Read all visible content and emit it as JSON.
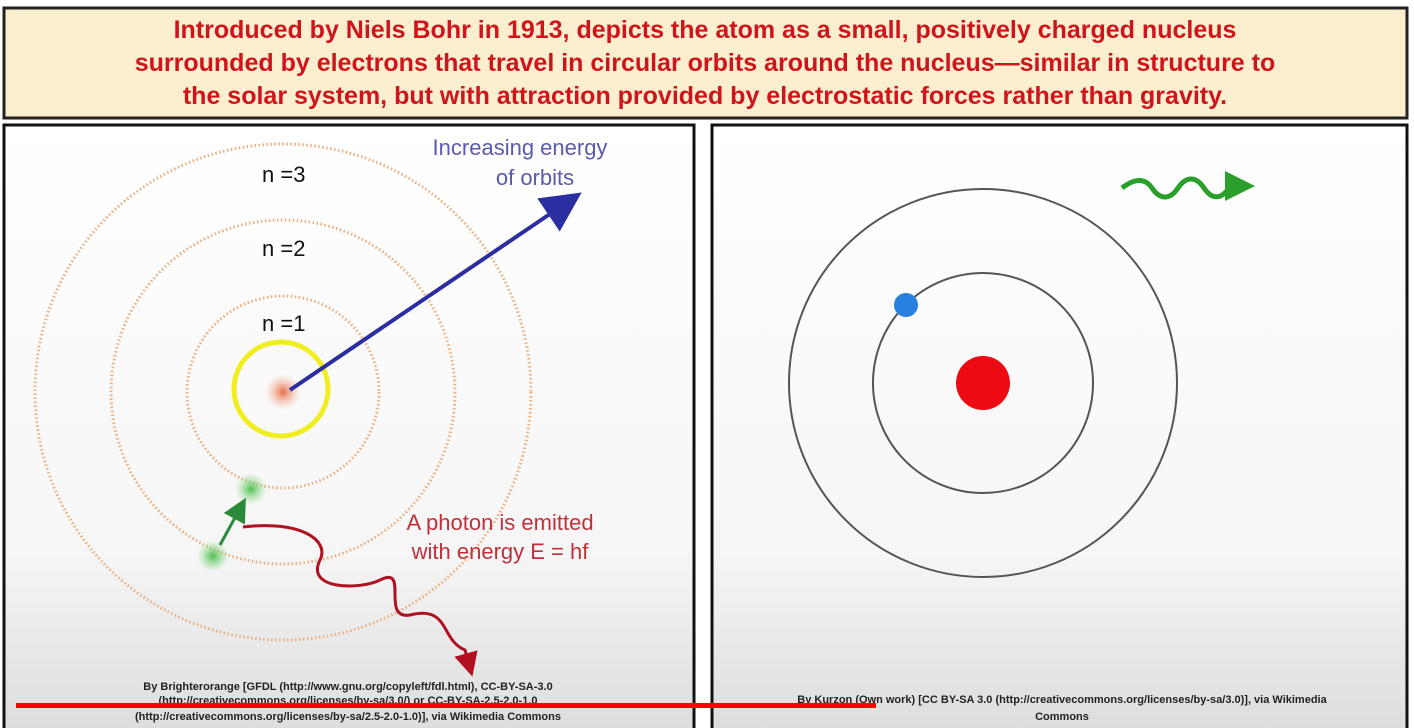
{
  "header": {
    "lines": [
      "Introduced by Niels Bohr in 1913, depicts the atom as a small, positively charged nucleus",
      "surrounded by electrons that travel in circular orbits around the nucleus—similar in structure to",
      "the solar system, but with attraction provided by electrostatic forces rather than gravity."
    ]
  },
  "left_diagram": {
    "orbit_labels": [
      "n =3",
      "n =2",
      "n =1"
    ],
    "energy_label": [
      "Increasing energy",
      "of orbits"
    ],
    "photon_label": [
      "A photon is emitted",
      "with energy E = hf"
    ],
    "credit": [
      "By Brighterorange [GFDL (http://www.gnu.org/copyleft/fdl.html), CC-BY-SA-3.0",
      "(http://creativecommons.org/licenses/by-sa/3.0/) or CC-BY-SA-2.5-2.0-1.0",
      "(http://creativecommons.org/licenses/by-sa/2.5-2.0-1.0)], via Wikimedia Commons"
    ]
  },
  "right_diagram": {
    "credit": [
      "By Kurzon (Own work) [CC BY-SA 3.0 (http://creativecommons.org/licenses/by-sa/3.0)], via Wikimedia",
      "Commons"
    ]
  }
}
